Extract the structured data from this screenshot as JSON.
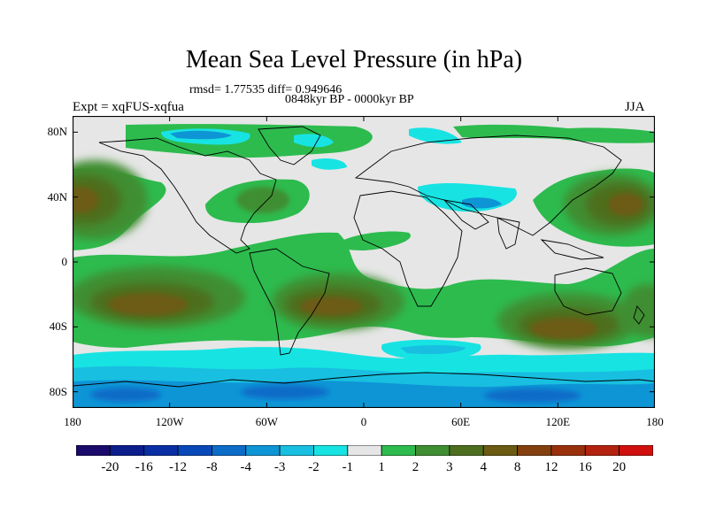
{
  "title": "Mean Sea Level Pressure (in hPa)",
  "stats": "rmsd= 1.77535 diff= 0.949646",
  "period": "0848kyr BP - 0000kyr BP",
  "experiment": "Expt = xqFUS-xqfua",
  "season": "JJA",
  "map": {
    "lat_ticks": [
      {
        "lat": 80,
        "label": "80N"
      },
      {
        "lat": 40,
        "label": "40N"
      },
      {
        "lat": 0,
        "label": "0"
      },
      {
        "lat": -40,
        "label": "40S"
      },
      {
        "lat": -80,
        "label": "80S"
      }
    ],
    "lon_ticks": [
      {
        "lon": -180,
        "label": "180"
      },
      {
        "lon": -120,
        "label": "120W"
      },
      {
        "lon": -60,
        "label": "60W"
      },
      {
        "lon": 0,
        "label": "0"
      },
      {
        "lon": 60,
        "label": "60E"
      },
      {
        "lon": 120,
        "label": "120E"
      },
      {
        "lon": 180,
        "label": "180"
      }
    ],
    "lat_range": [
      -90,
      90
    ],
    "lon_range": [
      -180,
      180
    ]
  },
  "colorbar": {
    "colors": [
      "#1a0a6b",
      "#0c1d8c",
      "#0a2fa5",
      "#0848b8",
      "#0c6cc8",
      "#0e95d6",
      "#18bfe0",
      "#18e3e3",
      "#e6e6e6",
      "#2dbb4e",
      "#3f8e32",
      "#4d6e1f",
      "#6c5b12",
      "#83400e",
      "#99300c",
      "#b3220e",
      "#d0100e"
    ],
    "labels": [
      "-20",
      "-16",
      "-12",
      "-8",
      "-4",
      "-3",
      "-2",
      "-1",
      "1",
      "2",
      "3",
      "4",
      "8",
      "12",
      "16",
      "20"
    ]
  }
}
